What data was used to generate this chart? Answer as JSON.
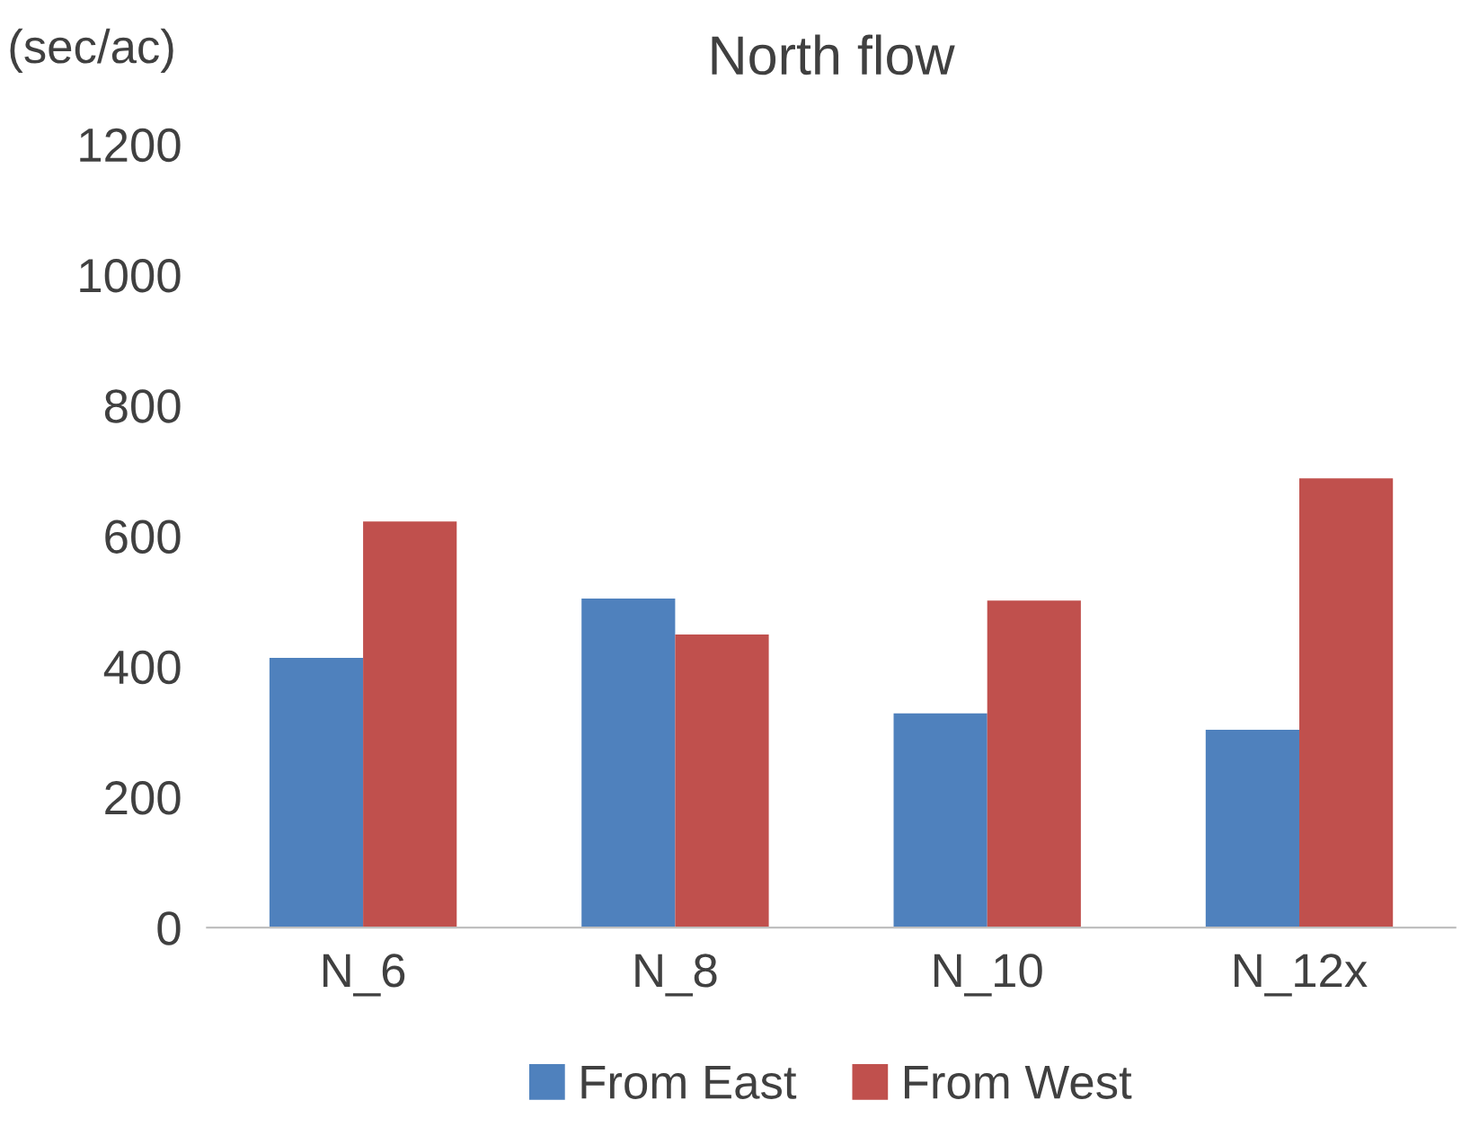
{
  "chart_data": {
    "type": "bar",
    "title": "North flow",
    "ylabel": "(sec/ac)",
    "categories": [
      "N_6",
      "N_8",
      "N_10",
      "N_12x"
    ],
    "series": [
      {
        "name": "From East",
        "color": "#4f81bd",
        "values": [
          413,
          504,
          328,
          303
        ]
      },
      {
        "name": "From West",
        "color": "#c0504d",
        "values": [
          622,
          449,
          501,
          688
        ]
      }
    ],
    "ylim": [
      0,
      1200
    ],
    "yticks": [
      0,
      200,
      400,
      600,
      800,
      1000,
      1200
    ],
    "grid": false,
    "legend": "bottom"
  }
}
